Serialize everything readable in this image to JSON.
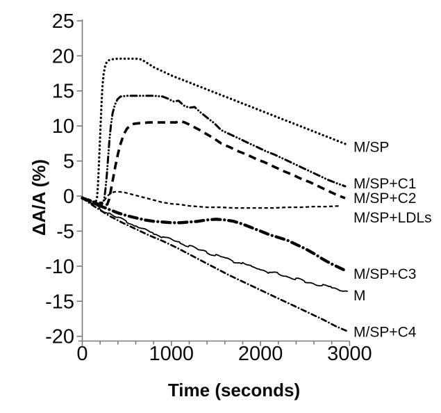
{
  "chart_data": {
    "type": "line",
    "title": "",
    "xlabel": "Time (seconds)",
    "ylabel": "ΔA/A (%)",
    "xlim": [
      0,
      3000
    ],
    "ylim": [
      -20,
      25
    ],
    "x_major_ticks": [
      0,
      1000,
      2000,
      3000
    ],
    "x_tick_labels": [
      "0",
      "1000",
      "2000",
      "3000"
    ],
    "x_minor_tick_step": 200,
    "y_ticks": [
      25,
      20,
      15,
      10,
      5,
      0,
      -5,
      -10,
      -15,
      -20
    ],
    "y_tick_labels": [
      "25",
      "20",
      "15",
      "10",
      "5",
      "0",
      "-5",
      "-10",
      "-15",
      "-20"
    ],
    "grid": false,
    "legend": "labels-at-line-ends",
    "line_color": "#000000",
    "axis_color": "#7a7a7a",
    "series": [
      {
        "name": "M/SP",
        "label": "M/SP",
        "style": "dotted",
        "noisy": false,
        "points": [
          [
            0,
            -0.2
          ],
          [
            60,
            -0.5
          ],
          [
            120,
            -0.8
          ],
          [
            150,
            -0.9
          ],
          [
            165,
            -0.3
          ],
          [
            175,
            1.5
          ],
          [
            185,
            4
          ],
          [
            195,
            7
          ],
          [
            205,
            10
          ],
          [
            215,
            13
          ],
          [
            225,
            15.5
          ],
          [
            240,
            17.5
          ],
          [
            260,
            18.8
          ],
          [
            285,
            19.3
          ],
          [
            320,
            19.5
          ],
          [
            400,
            19.6
          ],
          [
            500,
            19.6
          ],
          [
            600,
            19.6
          ],
          [
            660,
            19.5
          ],
          [
            700,
            19.2
          ],
          [
            750,
            18.8
          ],
          [
            800,
            18.4
          ],
          [
            850,
            18.1
          ],
          [
            900,
            17.8
          ],
          [
            1000,
            17.2
          ],
          [
            1100,
            16.7
          ],
          [
            1200,
            16.2
          ],
          [
            1300,
            15.7
          ],
          [
            1400,
            15.2
          ],
          [
            1500,
            14.7
          ],
          [
            1600,
            14.2
          ],
          [
            1700,
            13.7
          ],
          [
            1800,
            13.2
          ],
          [
            1900,
            12.7
          ],
          [
            2000,
            12.2
          ],
          [
            2100,
            11.7
          ],
          [
            2200,
            11.2
          ],
          [
            2300,
            10.7
          ],
          [
            2400,
            10.2
          ],
          [
            2500,
            9.7
          ],
          [
            2600,
            9.2
          ],
          [
            2700,
            8.7
          ],
          [
            2800,
            8.2
          ],
          [
            2900,
            7.7
          ],
          [
            2960,
            7.4
          ]
        ]
      },
      {
        "name": "M/SP+C1",
        "label": "M/SP+C1",
        "style": "dash-dot-dot",
        "noisy": false,
        "points": [
          [
            0,
            -0.2
          ],
          [
            80,
            -0.6
          ],
          [
            160,
            -1.0
          ],
          [
            220,
            -1.2
          ],
          [
            245,
            -0.5
          ],
          [
            260,
            1
          ],
          [
            275,
            3
          ],
          [
            290,
            5.5
          ],
          [
            305,
            8
          ],
          [
            320,
            10
          ],
          [
            340,
            11.8
          ],
          [
            365,
            13
          ],
          [
            395,
            13.8
          ],
          [
            430,
            14.2
          ],
          [
            500,
            14.3
          ],
          [
            600,
            14.3
          ],
          [
            700,
            14.3
          ],
          [
            800,
            14.3
          ],
          [
            900,
            14.2
          ],
          [
            960,
            13.9
          ],
          [
            1020,
            13.5
          ],
          [
            1080,
            13.6
          ],
          [
            1140,
            12.9
          ],
          [
            1200,
            12.6
          ],
          [
            1260,
            12.7
          ],
          [
            1320,
            12.0
          ],
          [
            1400,
            11.2
          ],
          [
            1480,
            10.4
          ],
          [
            1560,
            9.4
          ],
          [
            1660,
            8.8
          ],
          [
            1760,
            8.2
          ],
          [
            1860,
            7.6
          ],
          [
            1960,
            7.0
          ],
          [
            2060,
            6.4
          ],
          [
            2160,
            5.9
          ],
          [
            2260,
            5.3
          ],
          [
            2360,
            4.7
          ],
          [
            2460,
            4.1
          ],
          [
            2560,
            3.5
          ],
          [
            2660,
            2.9
          ],
          [
            2760,
            2.3
          ],
          [
            2860,
            1.8
          ],
          [
            2950,
            1.4
          ]
        ]
      },
      {
        "name": "M/SP+C2",
        "label": "M/SP+C2",
        "style": "long-dash",
        "noisy": false,
        "points": [
          [
            0,
            -0.3
          ],
          [
            80,
            -0.7
          ],
          [
            160,
            -1.1
          ],
          [
            240,
            -1.4
          ],
          [
            280,
            -1.2
          ],
          [
            300,
            -0.5
          ],
          [
            320,
            0.8
          ],
          [
            345,
            2.5
          ],
          [
            370,
            4.2
          ],
          [
            400,
            6.0
          ],
          [
            430,
            7.5
          ],
          [
            465,
            8.8
          ],
          [
            500,
            9.6
          ],
          [
            540,
            10.1
          ],
          [
            580,
            10.3
          ],
          [
            650,
            10.4
          ],
          [
            750,
            10.5
          ],
          [
            850,
            10.5
          ],
          [
            950,
            10.5
          ],
          [
            1050,
            10.5
          ],
          [
            1100,
            10.7
          ],
          [
            1150,
            10.5
          ],
          [
            1200,
            10.2
          ],
          [
            1260,
            9.8
          ],
          [
            1320,
            9.4
          ],
          [
            1400,
            8.8
          ],
          [
            1480,
            8.2
          ],
          [
            1560,
            7.5
          ],
          [
            1650,
            7.0
          ],
          [
            1750,
            6.4
          ],
          [
            1850,
            5.9
          ],
          [
            1950,
            5.3
          ],
          [
            2050,
            4.8
          ],
          [
            2150,
            4.2
          ],
          [
            2250,
            3.6
          ],
          [
            2350,
            3.1
          ],
          [
            2450,
            2.5
          ],
          [
            2550,
            2.0
          ],
          [
            2650,
            1.4
          ],
          [
            2750,
            0.8
          ],
          [
            2850,
            0.2
          ],
          [
            2950,
            -0.3
          ]
        ]
      },
      {
        "name": "M/SP+LDLs",
        "label": "M/SP+LDLs",
        "style": "short-dash",
        "noisy": false,
        "points": [
          [
            0,
            -0.2
          ],
          [
            60,
            -0.4
          ],
          [
            120,
            -0.7
          ],
          [
            180,
            -0.9
          ],
          [
            230,
            -0.9
          ],
          [
            260,
            -0.4
          ],
          [
            290,
            0.1
          ],
          [
            320,
            0.4
          ],
          [
            360,
            0.6
          ],
          [
            420,
            0.6
          ],
          [
            480,
            0.5
          ],
          [
            540,
            0.3
          ],
          [
            600,
            0.1
          ],
          [
            660,
            -0.1
          ],
          [
            720,
            -0.3
          ],
          [
            780,
            -0.5
          ],
          [
            840,
            -0.7
          ],
          [
            900,
            -0.9
          ],
          [
            1000,
            -1.1
          ],
          [
            1100,
            -1.2
          ],
          [
            1200,
            -1.4
          ],
          [
            1300,
            -1.5
          ],
          [
            1400,
            -1.6
          ],
          [
            1550,
            -1.6
          ],
          [
            1700,
            -1.7
          ],
          [
            1850,
            -1.7
          ],
          [
            2000,
            -1.7
          ],
          [
            2150,
            -1.7
          ],
          [
            2300,
            -1.6
          ],
          [
            2450,
            -1.6
          ],
          [
            2600,
            -1.5
          ],
          [
            2750,
            -1.5
          ],
          [
            2900,
            -1.4
          ]
        ]
      },
      {
        "name": "M/SP+C3",
        "label": "M/SP+C3",
        "style": "thick-dash-dot",
        "noisy": false,
        "points": [
          [
            0,
            -0.3
          ],
          [
            100,
            -0.8
          ],
          [
            200,
            -1.4
          ],
          [
            300,
            -1.9
          ],
          [
            400,
            -2.4
          ],
          [
            500,
            -2.8
          ],
          [
            600,
            -3.1
          ],
          [
            700,
            -3.4
          ],
          [
            800,
            -3.6
          ],
          [
            900,
            -3.7
          ],
          [
            1000,
            -3.8
          ],
          [
            1100,
            -3.8
          ],
          [
            1200,
            -3.7
          ],
          [
            1300,
            -3.6
          ],
          [
            1400,
            -3.4
          ],
          [
            1500,
            -3.3
          ],
          [
            1600,
            -3.4
          ],
          [
            1700,
            -3.6
          ],
          [
            1800,
            -4.0
          ],
          [
            1900,
            -4.5
          ],
          [
            2000,
            -5.0
          ],
          [
            2100,
            -5.5
          ],
          [
            2200,
            -5.9
          ],
          [
            2300,
            -6.3
          ],
          [
            2400,
            -6.9
          ],
          [
            2500,
            -7.5
          ],
          [
            2600,
            -8.2
          ],
          [
            2700,
            -9.0
          ],
          [
            2800,
            -9.7
          ],
          [
            2900,
            -10.3
          ],
          [
            2950,
            -10.6
          ]
        ]
      },
      {
        "name": "M",
        "label": "M",
        "style": "solid",
        "noisy": true,
        "points": [
          [
            0,
            -0.2
          ],
          [
            100,
            -1.0
          ],
          [
            200,
            -1.8
          ],
          [
            300,
            -2.5
          ],
          [
            400,
            -3.1
          ],
          [
            500,
            -3.6
          ],
          [
            600,
            -4.3
          ],
          [
            700,
            -4.8
          ],
          [
            800,
            -5.3
          ],
          [
            900,
            -5.8
          ],
          [
            1000,
            -6.2
          ],
          [
            1100,
            -6.7
          ],
          [
            1200,
            -7.1
          ],
          [
            1300,
            -7.6
          ],
          [
            1400,
            -8.0
          ],
          [
            1500,
            -8.5
          ],
          [
            1600,
            -8.8
          ],
          [
            1700,
            -9.3
          ],
          [
            1800,
            -9.6
          ],
          [
            1900,
            -10.1
          ],
          [
            2000,
            -10.4
          ],
          [
            2100,
            -10.9
          ],
          [
            2200,
            -11.1
          ],
          [
            2300,
            -11.5
          ],
          [
            2400,
            -11.8
          ],
          [
            2500,
            -12.2
          ],
          [
            2600,
            -12.5
          ],
          [
            2700,
            -12.8
          ],
          [
            2800,
            -13.0
          ],
          [
            2900,
            -13.4
          ],
          [
            2980,
            -13.6
          ]
        ]
      },
      {
        "name": "M/SP+C4",
        "label": "M/SP+C4",
        "style": "dash-dot",
        "noisy": false,
        "points": [
          [
            0,
            -0.3
          ],
          [
            150,
            -1.6
          ],
          [
            300,
            -2.8
          ],
          [
            450,
            -3.8
          ],
          [
            600,
            -4.7
          ],
          [
            750,
            -5.6
          ],
          [
            900,
            -6.4
          ],
          [
            1050,
            -7.3
          ],
          [
            1200,
            -8.3
          ],
          [
            1350,
            -9.3
          ],
          [
            1500,
            -10.3
          ],
          [
            1650,
            -11.3
          ],
          [
            1800,
            -12.2
          ],
          [
            1950,
            -13.1
          ],
          [
            2100,
            -14.0
          ],
          [
            2250,
            -14.9
          ],
          [
            2400,
            -15.8
          ],
          [
            2550,
            -16.7
          ],
          [
            2700,
            -17.6
          ],
          [
            2850,
            -18.6
          ],
          [
            2980,
            -19.3
          ]
        ]
      }
    ]
  }
}
